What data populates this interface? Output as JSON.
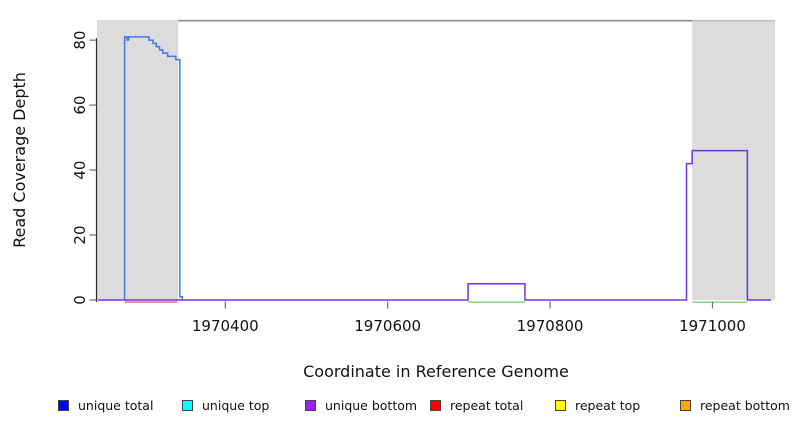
{
  "chart_data": {
    "type": "line",
    "subtype": "step-coverage",
    "title": "",
    "xlabel": "Coordinate in Reference Genome",
    "ylabel": "Read Coverage Depth",
    "xlim": [
      1970242,
      1971077
    ],
    "ylim": [
      0,
      86.2
    ],
    "xticks": [
      1970400,
      1970600,
      1970800,
      1971000
    ],
    "yticks": [
      0,
      20,
      40,
      60,
      80
    ],
    "grid": false,
    "legend_position": "bottom",
    "colors": {
      "shaded_region": "#DCDCDC",
      "top_line": "#8C8C8C",
      "axis": "#2A2A2A",
      "tick": "#707070",
      "text": "#111111"
    },
    "shaded_regions": [
      {
        "x1": 1970242,
        "x2": 1970342
      },
      {
        "x1": 1970975,
        "x2": 1971077
      }
    ],
    "top_line": {
      "x1": 1970342,
      "x2": 1971077,
      "y": 86
    },
    "series": [
      {
        "name": "unique total",
        "legend_color": "#0000FF",
        "line_color": "#3E79E8",
        "end": 1970347,
        "steps": [
          [
            1970276,
            81
          ],
          [
            1970279,
            80
          ],
          [
            1970281,
            81
          ],
          [
            1970306,
            80
          ],
          [
            1970311,
            79
          ],
          [
            1970315,
            78
          ],
          [
            1970319,
            77
          ],
          [
            1970323,
            76
          ],
          [
            1970329,
            75
          ],
          [
            1970339,
            74
          ],
          [
            1970344,
            1
          ],
          [
            1970347,
            0
          ]
        ]
      },
      {
        "name": "unique bottom",
        "legend_color": "#A020F0",
        "line_color": "#6F35E3",
        "end": 1971072,
        "steps": [
          [
            1970243,
            0
          ],
          [
            1970699,
            5
          ],
          [
            1970769,
            0
          ],
          [
            1970968,
            42
          ],
          [
            1970975,
            46
          ],
          [
            1971043,
            0
          ]
        ]
      },
      {
        "name": "repeat total",
        "legend_color": "#FF0000",
        "line_color": "#F06A6A",
        "baseline_segments": [
          {
            "x1": 1970276,
            "x2": 1970341
          }
        ]
      }
    ],
    "overlap_segments": {
      "color": "#90DB90",
      "depth": 0,
      "segments": [
        {
          "x1": 1970699,
          "x2": 1970769
        },
        {
          "x1": 1970975,
          "x2": 1971043
        }
      ]
    },
    "legend": [
      {
        "label": "unique total",
        "color": "#0000FF"
      },
      {
        "label": "unique top",
        "color": "#00FFFF"
      },
      {
        "label": "unique bottom",
        "color": "#A020F0"
      },
      {
        "label": "repeat total",
        "color": "#FF0000"
      },
      {
        "label": "repeat top",
        "color": "#FFFF00"
      },
      {
        "label": "repeat bottom",
        "color": "#FFA500"
      }
    ]
  }
}
